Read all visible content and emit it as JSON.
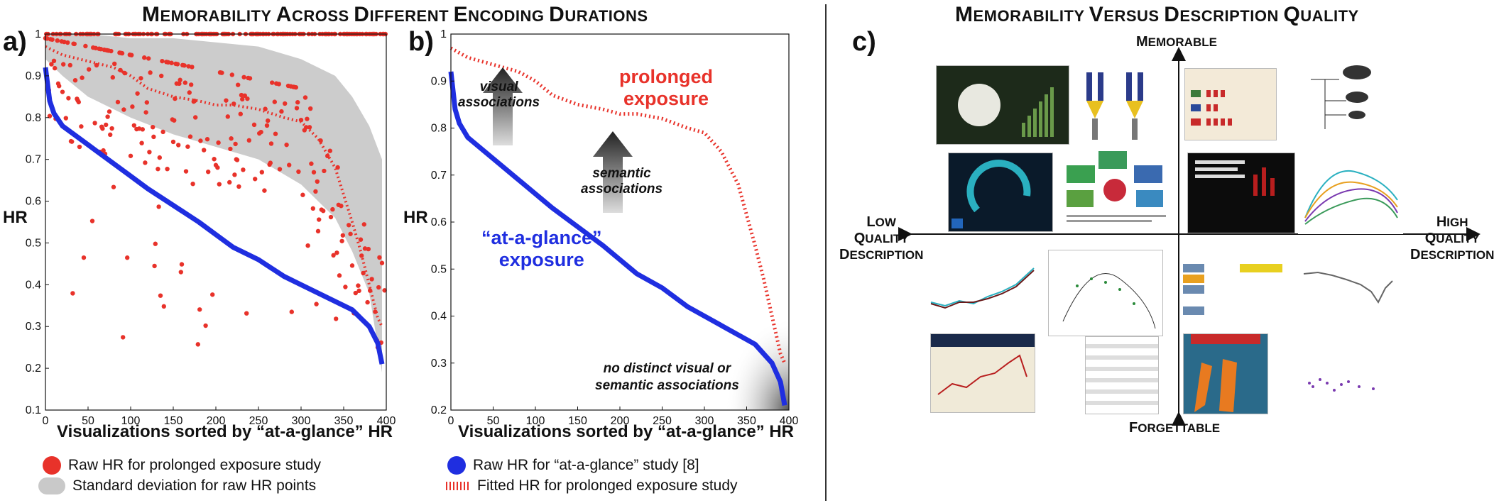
{
  "left_title": {
    "first": "M",
    "rest": "EMORABILITY ",
    "a": "A",
    "a_rest": "CROSS ",
    "d": "D",
    "d_rest": "IFFERENT ",
    "e": "E",
    "e_rest": "NCODING ",
    "dd": "D",
    "dd_rest": "URATIONS"
  },
  "right_title": {
    "first": "M",
    "rest": "EMORABILITY ",
    "v": "V",
    "v_rest": "ERSUS ",
    "d": "D",
    "d_rest": "ESCRIPTION ",
    "q": "Q",
    "q_rest": "UALITY"
  },
  "panel_a": {
    "letter": "a)",
    "ylabel": "HR",
    "xlabel": "Visualizations sorted by “at-a-glance” HR"
  },
  "panel_b": {
    "letter": "b)",
    "ylabel": "HR",
    "xlabel": "Visualizations sorted by “at-a-glance” HR",
    "ann_prolonged": [
      "prolonged",
      "exposure"
    ],
    "ann_visual": [
      "visual",
      "associations"
    ],
    "ann_semantic": [
      "semantic",
      "associations"
    ],
    "ann_glance": [
      "“at-a-glance”",
      "exposure"
    ],
    "ann_none": [
      "no distinct visual or",
      "semantic associations"
    ]
  },
  "panel_c": {
    "letter": "c)",
    "top": {
      "cap": "M",
      "rest": "EMORABLE"
    },
    "bottom": {
      "cap": "F",
      "rest": "ORGETTABLE"
    },
    "left": {
      "l1cap": "L",
      "l1": "OW",
      "l2cap": "Q",
      "l2": "UALITY",
      "l3cap": "D",
      "l3": "ESCRIPTION"
    },
    "right": {
      "l1cap": "H",
      "l1": "IGH",
      "l2cap": "Q",
      "l2": "UALITY",
      "l3cap": "D",
      "l3": "ESCRIPTION"
    }
  },
  "legend": {
    "raw_prolonged": "Raw HR for prolonged exposure study",
    "std": "Standard deviation for raw HR points",
    "raw_glance": "Raw HR for “at-a-glance” study [8]",
    "fitted": "Fitted HR for prolonged exposure study"
  },
  "colors": {
    "red": "#e8322a",
    "blue": "#1f2ee0",
    "gray": "#c9c9c9"
  },
  "chart_data": [
    {
      "type": "scatter",
      "xlim": [
        0,
        400
      ],
      "ylim": [
        0.1,
        1.0
      ],
      "xticks": [
        0,
        50,
        100,
        150,
        200,
        250,
        300,
        350,
        400
      ],
      "yticks": [
        0.1,
        0.2,
        0.3,
        0.4,
        0.5,
        0.6,
        0.7,
        0.8,
        0.9,
        1
      ],
      "xlabel": "Visualizations sorted by “at-a-glance” HR",
      "ylabel": "HR",
      "series": [
        {
          "name": "Raw HR for “at-a-glance” study [8]",
          "kind": "line",
          "x": [
            0,
            5,
            10,
            20,
            40,
            60,
            80,
            100,
            120,
            150,
            180,
            200,
            220,
            250,
            280,
            300,
            320,
            340,
            360,
            370,
            380,
            390,
            395
          ],
          "y": [
            0.92,
            0.84,
            0.81,
            0.78,
            0.75,
            0.72,
            0.69,
            0.66,
            0.63,
            0.59,
            0.55,
            0.52,
            0.49,
            0.46,
            0.42,
            0.4,
            0.38,
            0.36,
            0.34,
            0.32,
            0.3,
            0.26,
            0.21
          ]
        },
        {
          "name": "Fitted HR for prolonged exposure study",
          "kind": "dashed",
          "x": [
            0,
            20,
            40,
            60,
            80,
            100,
            120,
            150,
            180,
            200,
            220,
            250,
            280,
            300,
            320,
            340,
            360,
            370,
            380,
            390,
            395
          ],
          "y": [
            0.97,
            0.95,
            0.94,
            0.93,
            0.92,
            0.9,
            0.87,
            0.85,
            0.84,
            0.83,
            0.83,
            0.82,
            0.8,
            0.79,
            0.75,
            0.68,
            0.55,
            0.48,
            0.4,
            0.32,
            0.3
          ]
        },
        {
          "name": "Standard deviation for raw HR points",
          "kind": "band",
          "x": [
            0,
            20,
            50,
            100,
            150,
            200,
            250,
            300,
            340,
            360,
            380,
            395
          ],
          "upper": [
            1.0,
            1.0,
            1.0,
            0.99,
            0.99,
            0.98,
            0.97,
            0.94,
            0.9,
            0.85,
            0.78,
            0.7
          ],
          "lower": [
            0.94,
            0.9,
            0.85,
            0.8,
            0.76,
            0.73,
            0.7,
            0.64,
            0.56,
            0.48,
            0.38,
            0.19
          ]
        },
        {
          "name": "Raw HR for prolonged exposure study",
          "kind": "points",
          "n": 400
        }
      ]
    },
    {
      "type": "line",
      "xlim": [
        0,
        400
      ],
      "ylim": [
        0.2,
        1.0
      ],
      "xticks": [
        0,
        50,
        100,
        150,
        200,
        250,
        300,
        350,
        400
      ],
      "yticks": [
        0.2,
        0.3,
        0.4,
        0.5,
        0.6,
        0.7,
        0.8,
        0.9,
        1
      ],
      "xlabel": "Visualizations sorted by “at-a-glance” HR",
      "ylabel": "HR",
      "series": [
        {
          "name": "Raw HR for “at-a-glance” study [8]",
          "kind": "line",
          "x": [
            0,
            5,
            10,
            20,
            40,
            60,
            80,
            100,
            120,
            150,
            180,
            200,
            220,
            250,
            280,
            300,
            320,
            340,
            360,
            370,
            380,
            390,
            395
          ],
          "y": [
            0.92,
            0.84,
            0.81,
            0.78,
            0.75,
            0.72,
            0.69,
            0.66,
            0.63,
            0.59,
            0.55,
            0.52,
            0.49,
            0.46,
            0.42,
            0.4,
            0.38,
            0.36,
            0.34,
            0.32,
            0.3,
            0.26,
            0.21
          ]
        },
        {
          "name": "Fitted HR for prolonged exposure study",
          "kind": "dashed",
          "x": [
            0,
            20,
            40,
            60,
            80,
            100,
            120,
            150,
            180,
            200,
            220,
            250,
            280,
            300,
            320,
            340,
            360,
            370,
            380,
            390,
            395
          ],
          "y": [
            0.97,
            0.95,
            0.94,
            0.93,
            0.92,
            0.9,
            0.87,
            0.85,
            0.84,
            0.83,
            0.83,
            0.82,
            0.8,
            0.79,
            0.75,
            0.68,
            0.55,
            0.48,
            0.4,
            0.32,
            0.3
          ]
        }
      ]
    }
  ]
}
